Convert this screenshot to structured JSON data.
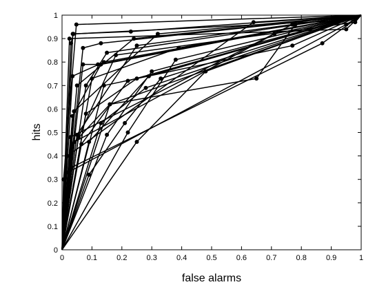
{
  "chart_data": {
    "type": "line",
    "title": "",
    "xlabel": "false alarms",
    "ylabel": "hits",
    "xlim": [
      0,
      1
    ],
    "ylim": [
      0,
      1
    ],
    "xticks": [
      "0",
      "0.1",
      "0.2",
      "0.3",
      "0.4",
      "0.5",
      "0.6",
      "0.7",
      "0.8",
      "0.9",
      "1"
    ],
    "yticks": [
      "0",
      "0.1",
      "0.2",
      "0.3",
      "0.4",
      "0.5",
      "0.6",
      "0.7",
      "0.8",
      "0.9",
      "1"
    ],
    "grid": false,
    "line_color": "#000000",
    "series": [
      {
        "points": [
          [
            0,
            0
          ],
          [
            0.005,
            0.3
          ],
          [
            0.048,
            0.96
          ],
          [
            1,
            1
          ]
        ]
      },
      {
        "points": [
          [
            0,
            0
          ],
          [
            0.03,
            0.88
          ],
          [
            0.038,
            0.92
          ],
          [
            0.98,
            0.98
          ],
          [
            1,
            1
          ]
        ]
      },
      {
        "points": [
          [
            0,
            0
          ],
          [
            0.036,
            0.92
          ],
          [
            0.23,
            0.93
          ],
          [
            1,
            1
          ]
        ]
      },
      {
        "points": [
          [
            0,
            0
          ],
          [
            0.05,
            0.7
          ],
          [
            0.24,
            0.9
          ],
          [
            1,
            1
          ]
        ]
      },
      {
        "points": [
          [
            0,
            0
          ],
          [
            0.07,
            0.86
          ],
          [
            0.13,
            0.88
          ],
          [
            1,
            1
          ]
        ]
      },
      {
        "points": [
          [
            0,
            0
          ],
          [
            0.035,
            0.74
          ],
          [
            0.14,
            0.8
          ],
          [
            1,
            1
          ]
        ]
      },
      {
        "points": [
          [
            0,
            0
          ],
          [
            0.035,
            0.57
          ],
          [
            0.13,
            0.79
          ],
          [
            1,
            1
          ]
        ]
      },
      {
        "points": [
          [
            0,
            0
          ],
          [
            0.07,
            0.79
          ],
          [
            0.12,
            0.79
          ],
          [
            1,
            1
          ]
        ]
      },
      {
        "points": [
          [
            0,
            0
          ],
          [
            0.05,
            0.49
          ],
          [
            0.25,
            0.87
          ],
          [
            1,
            1
          ]
        ]
      },
      {
        "points": [
          [
            0,
            0
          ],
          [
            0.04,
            0.59
          ],
          [
            0.32,
            0.92
          ],
          [
            1,
            1
          ]
        ]
      },
      {
        "points": [
          [
            0,
            0
          ],
          [
            0.08,
            0.7
          ],
          [
            0.15,
            0.84
          ],
          [
            1,
            1
          ]
        ]
      },
      {
        "points": [
          [
            0,
            0
          ],
          [
            0.065,
            0.45
          ],
          [
            0.22,
            0.72
          ],
          [
            1,
            1
          ]
        ]
      },
      {
        "points": [
          [
            0,
            0
          ],
          [
            0.1,
            0.73
          ],
          [
            0.39,
            0.86
          ],
          [
            1,
            1
          ]
        ]
      },
      {
        "points": [
          [
            0,
            0
          ],
          [
            0.035,
            0.45
          ],
          [
            0.16,
            0.62
          ],
          [
            1,
            1
          ]
        ]
      },
      {
        "points": [
          [
            0,
            0
          ],
          [
            0.13,
            0.54
          ],
          [
            0.28,
            0.69
          ],
          [
            1,
            1
          ]
        ]
      },
      {
        "points": [
          [
            0,
            0
          ],
          [
            0.08,
            0.58
          ],
          [
            0.25,
            0.73
          ],
          [
            1,
            1
          ]
        ]
      },
      {
        "points": [
          [
            0,
            0
          ],
          [
            0.09,
            0.46
          ],
          [
            0.29,
            0.74
          ],
          [
            1,
            1
          ]
        ]
      },
      {
        "points": [
          [
            0,
            0
          ],
          [
            0.09,
            0.32
          ],
          [
            0.21,
            0.54
          ],
          [
            0.33,
            0.73
          ],
          [
            1,
            1
          ]
        ]
      },
      {
        "points": [
          [
            0,
            0
          ],
          [
            0.15,
            0.49
          ],
          [
            0.3,
            0.76
          ],
          [
            1,
            1
          ]
        ]
      },
      {
        "points": [
          [
            0,
            0
          ],
          [
            0.22,
            0.5
          ],
          [
            0.38,
            0.81
          ],
          [
            1,
            1
          ]
        ]
      },
      {
        "points": [
          [
            0,
            0
          ],
          [
            0.25,
            0.46
          ],
          [
            0.48,
            0.76
          ],
          [
            1,
            1
          ]
        ]
      },
      {
        "points": [
          [
            0,
            0
          ],
          [
            0.14,
            0.7
          ],
          [
            0.77,
            0.87
          ],
          [
            1,
            1
          ]
        ]
      },
      {
        "points": [
          [
            0,
            0
          ],
          [
            0.03,
            0.35
          ],
          [
            0.87,
            0.88
          ],
          [
            1,
            1
          ]
        ]
      },
      {
        "points": [
          [
            0,
            0
          ],
          [
            0.16,
            0.62
          ],
          [
            0.65,
            0.73
          ],
          [
            0.78,
            0.96
          ],
          [
            1,
            1
          ]
        ]
      },
      {
        "points": [
          [
            0,
            0
          ],
          [
            0.025,
            0.9
          ],
          [
            0.95,
            0.94
          ],
          [
            1,
            1
          ]
        ]
      },
      {
        "points": [
          [
            0,
            0
          ],
          [
            0.02,
            0.33
          ],
          [
            0.95,
            0.96
          ],
          [
            1,
            1
          ]
        ]
      },
      {
        "points": [
          [
            0,
            0
          ],
          [
            0.028,
            0.48
          ],
          [
            0.77,
            0.96
          ],
          [
            1,
            1
          ]
        ]
      },
      {
        "points": [
          [
            0,
            0
          ],
          [
            0.042,
            0.46
          ],
          [
            0.71,
            0.92
          ],
          [
            1,
            1
          ]
        ]
      },
      {
        "points": [
          [
            0,
            0
          ],
          [
            0.018,
            0.4
          ],
          [
            0.64,
            0.97
          ],
          [
            1,
            1
          ]
        ]
      },
      {
        "points": [
          [
            0,
            0
          ],
          [
            0.055,
            0.48
          ],
          [
            0.18,
            0.83
          ],
          [
            0.98,
            0.97
          ],
          [
            1,
            1
          ]
        ]
      }
    ]
  }
}
